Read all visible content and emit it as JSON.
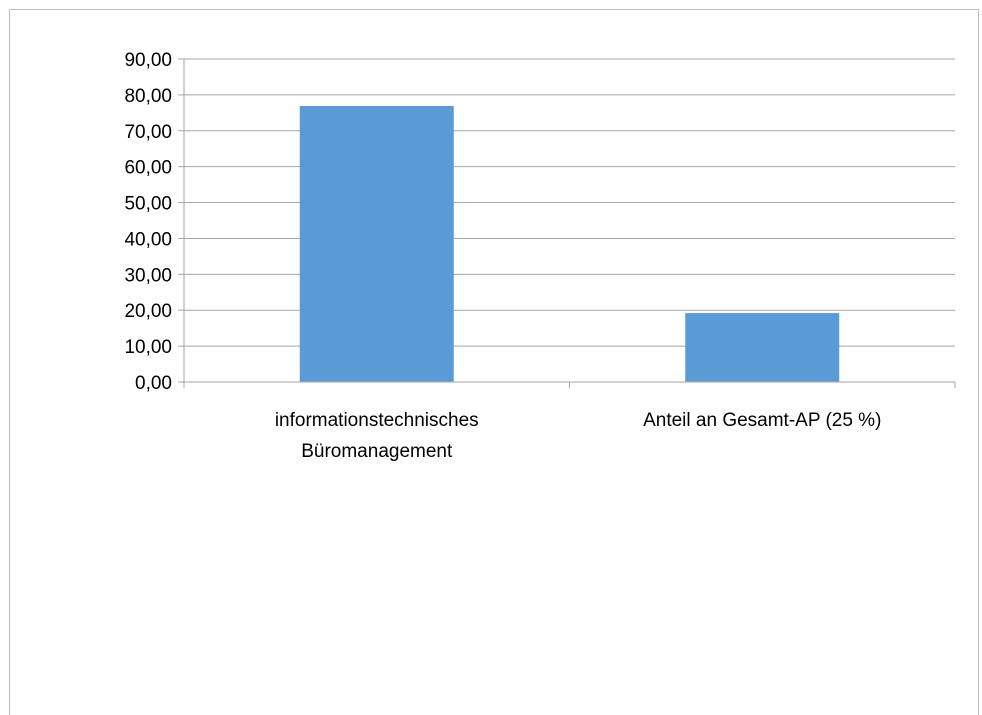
{
  "chart_data": {
    "type": "bar",
    "categories": [
      [
        "informationstechnisches",
        "Büromanagement"
      ],
      [
        "Anteil an Gesamt-AP (25 %)"
      ]
    ],
    "values": [
      76.9,
      19.2
    ],
    "ylim": [
      0,
      90
    ],
    "yticks": [
      "0,00",
      "10,00",
      "20,00",
      "30,00",
      "40,00",
      "50,00",
      "60,00",
      "70,00",
      "80,00",
      "90,00"
    ],
    "ytick_values": [
      0,
      10,
      20,
      30,
      40,
      50,
      60,
      70,
      80,
      90
    ],
    "grid": true,
    "legend": "none",
    "bar_color": "#5b9bd5"
  }
}
